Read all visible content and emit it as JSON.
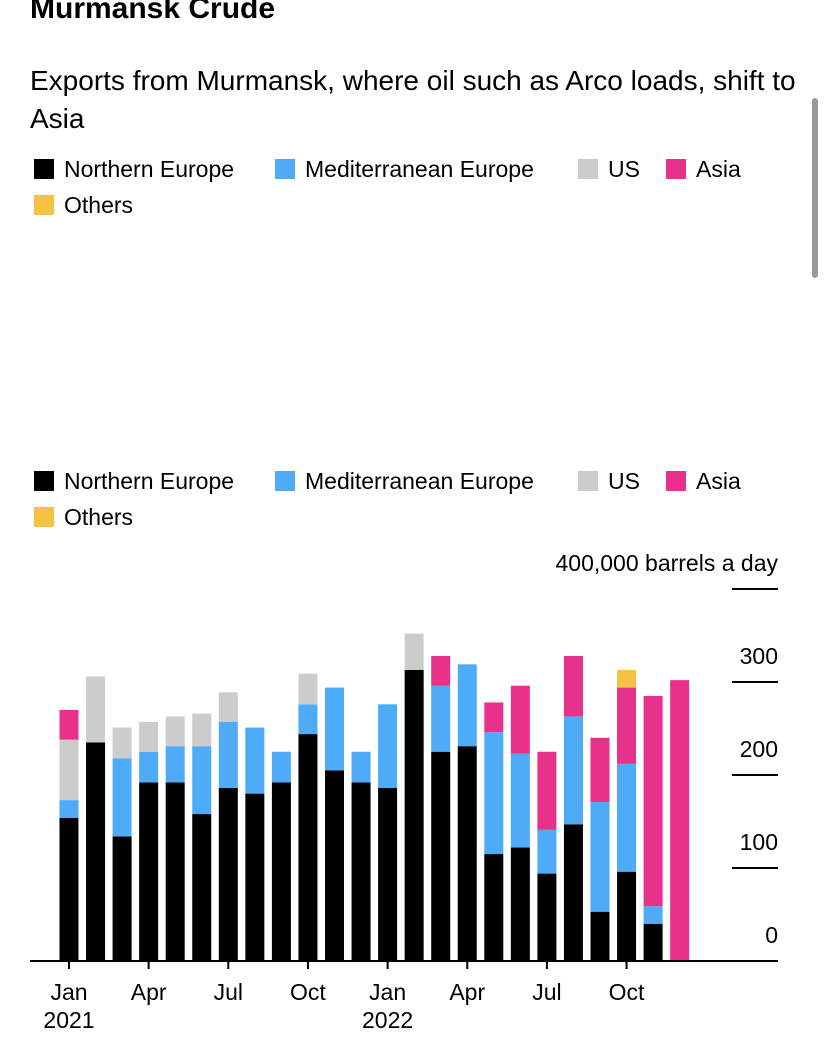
{
  "chart_data": {
    "type": "stacked-bar",
    "title": "Murmansk Crude",
    "subtitle": "Exports from Murmansk, where oil such as Arco loads, shift to Asia",
    "categories": [
      "Jan",
      null,
      null,
      "Apr",
      null,
      null,
      "Jul",
      null,
      null,
      "Oct",
      null,
      null,
      "Jan",
      null,
      null,
      "Apr",
      null,
      null,
      "Jul",
      null,
      null,
      "Oct",
      null,
      null
    ],
    "years": [
      "2021",
      null,
      null,
      null,
      null,
      null,
      null,
      null,
      null,
      null,
      null,
      null,
      "2022",
      null,
      null,
      null,
      null,
      null,
      null,
      null,
      null,
      null,
      null,
      null
    ],
    "series": [
      {
        "name": "Northern Europe",
        "color": "#000000",
        "values": [
          154,
          235,
          134,
          192,
          192,
          158,
          186,
          180,
          192,
          244,
          205,
          192,
          186,
          313,
          225,
          231,
          115,
          122,
          94,
          147,
          53,
          96,
          40,
          0
        ]
      },
      {
        "name": "Mediterranean Europe",
        "color": "#4dabf7",
        "values": [
          19,
          0,
          84,
          33,
          39,
          73,
          71,
          71,
          33,
          32,
          89,
          33,
          90,
          0,
          71,
          88,
          131,
          101,
          47,
          116,
          118,
          116,
          19,
          0
        ]
      },
      {
        "name": "US",
        "color": "#cccccc",
        "values": [
          65,
          71,
          33,
          32,
          32,
          35,
          32,
          0,
          0,
          33,
          0,
          0,
          0,
          39,
          0,
          0,
          0,
          0,
          0,
          0,
          0,
          0,
          0,
          0
        ]
      },
      {
        "name": "Asia",
        "color": "#e8318a",
        "values": [
          32,
          0,
          0,
          0,
          0,
          0,
          0,
          0,
          0,
          0,
          0,
          0,
          0,
          0,
          32,
          0,
          32,
          73,
          84,
          65,
          69,
          82,
          226,
          302
        ]
      },
      {
        "name": "Others",
        "color": "#f5c242",
        "values": [
          0,
          0,
          0,
          0,
          0,
          0,
          0,
          0,
          0,
          0,
          0,
          0,
          0,
          0,
          0,
          0,
          0,
          0,
          0,
          0,
          0,
          19,
          0,
          0
        ]
      }
    ],
    "ylim": [
      0,
      400
    ],
    "yticks": [
      0,
      100,
      200,
      300,
      {
        "value": 400,
        "label": "400,000 barrels a day"
      }
    ]
  }
}
